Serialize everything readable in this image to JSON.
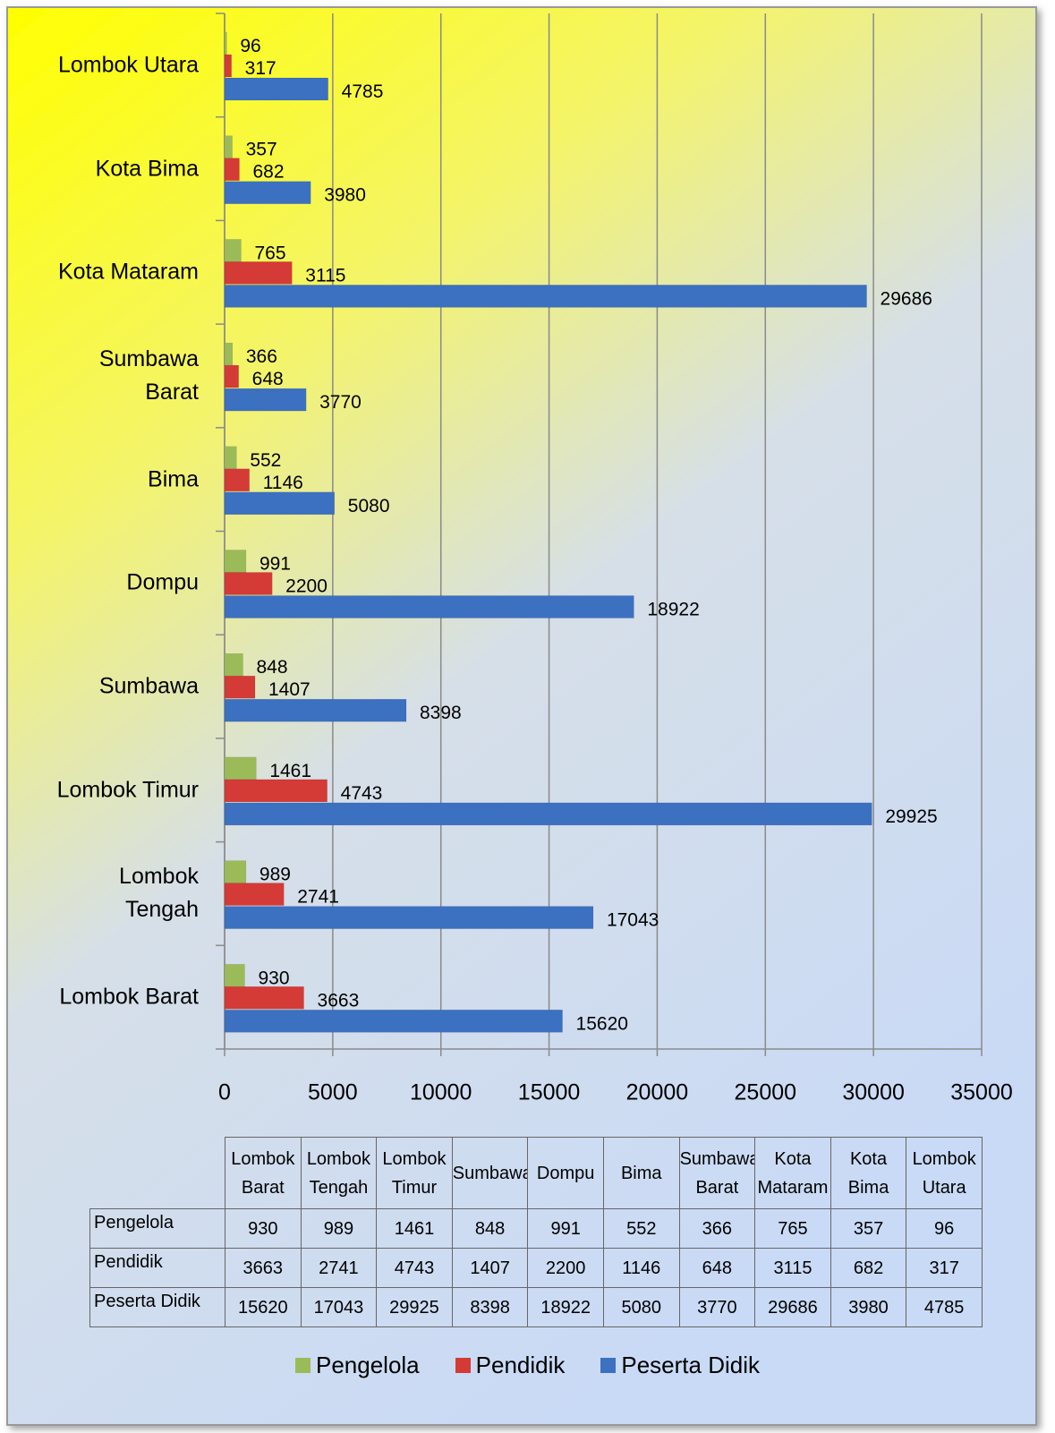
{
  "chart_data": {
    "type": "bar",
    "orientation": "horizontal",
    "categories": [
      "Lombok Barat",
      "Lombok Tengah",
      "Lombok Timur",
      "Sumbawa",
      "Dompu",
      "Bima",
      "Sumbawa Barat",
      "Kota Mataram",
      "Kota Bima",
      "Lombok Utara"
    ],
    "series": [
      {
        "name": "Pengelola",
        "color": "#9bbb59",
        "values": [
          930,
          989,
          1461,
          848,
          991,
          552,
          366,
          765,
          357,
          96
        ]
      },
      {
        "name": "Pendidik",
        "color": "#d43a36",
        "values": [
          3663,
          2741,
          4743,
          1407,
          2200,
          1146,
          648,
          3115,
          682,
          317
        ]
      },
      {
        "name": "Peserta Didik",
        "color": "#3c70c0",
        "values": [
          15620,
          17043,
          29925,
          8398,
          18922,
          5080,
          3770,
          29686,
          3980,
          4785
        ]
      }
    ],
    "xlim": [
      0,
      35000
    ],
    "xticks": [
      0,
      5000,
      10000,
      15000,
      20000,
      25000,
      30000,
      35000
    ],
    "grid": true,
    "legend": "bottom",
    "data_table": true
  }
}
